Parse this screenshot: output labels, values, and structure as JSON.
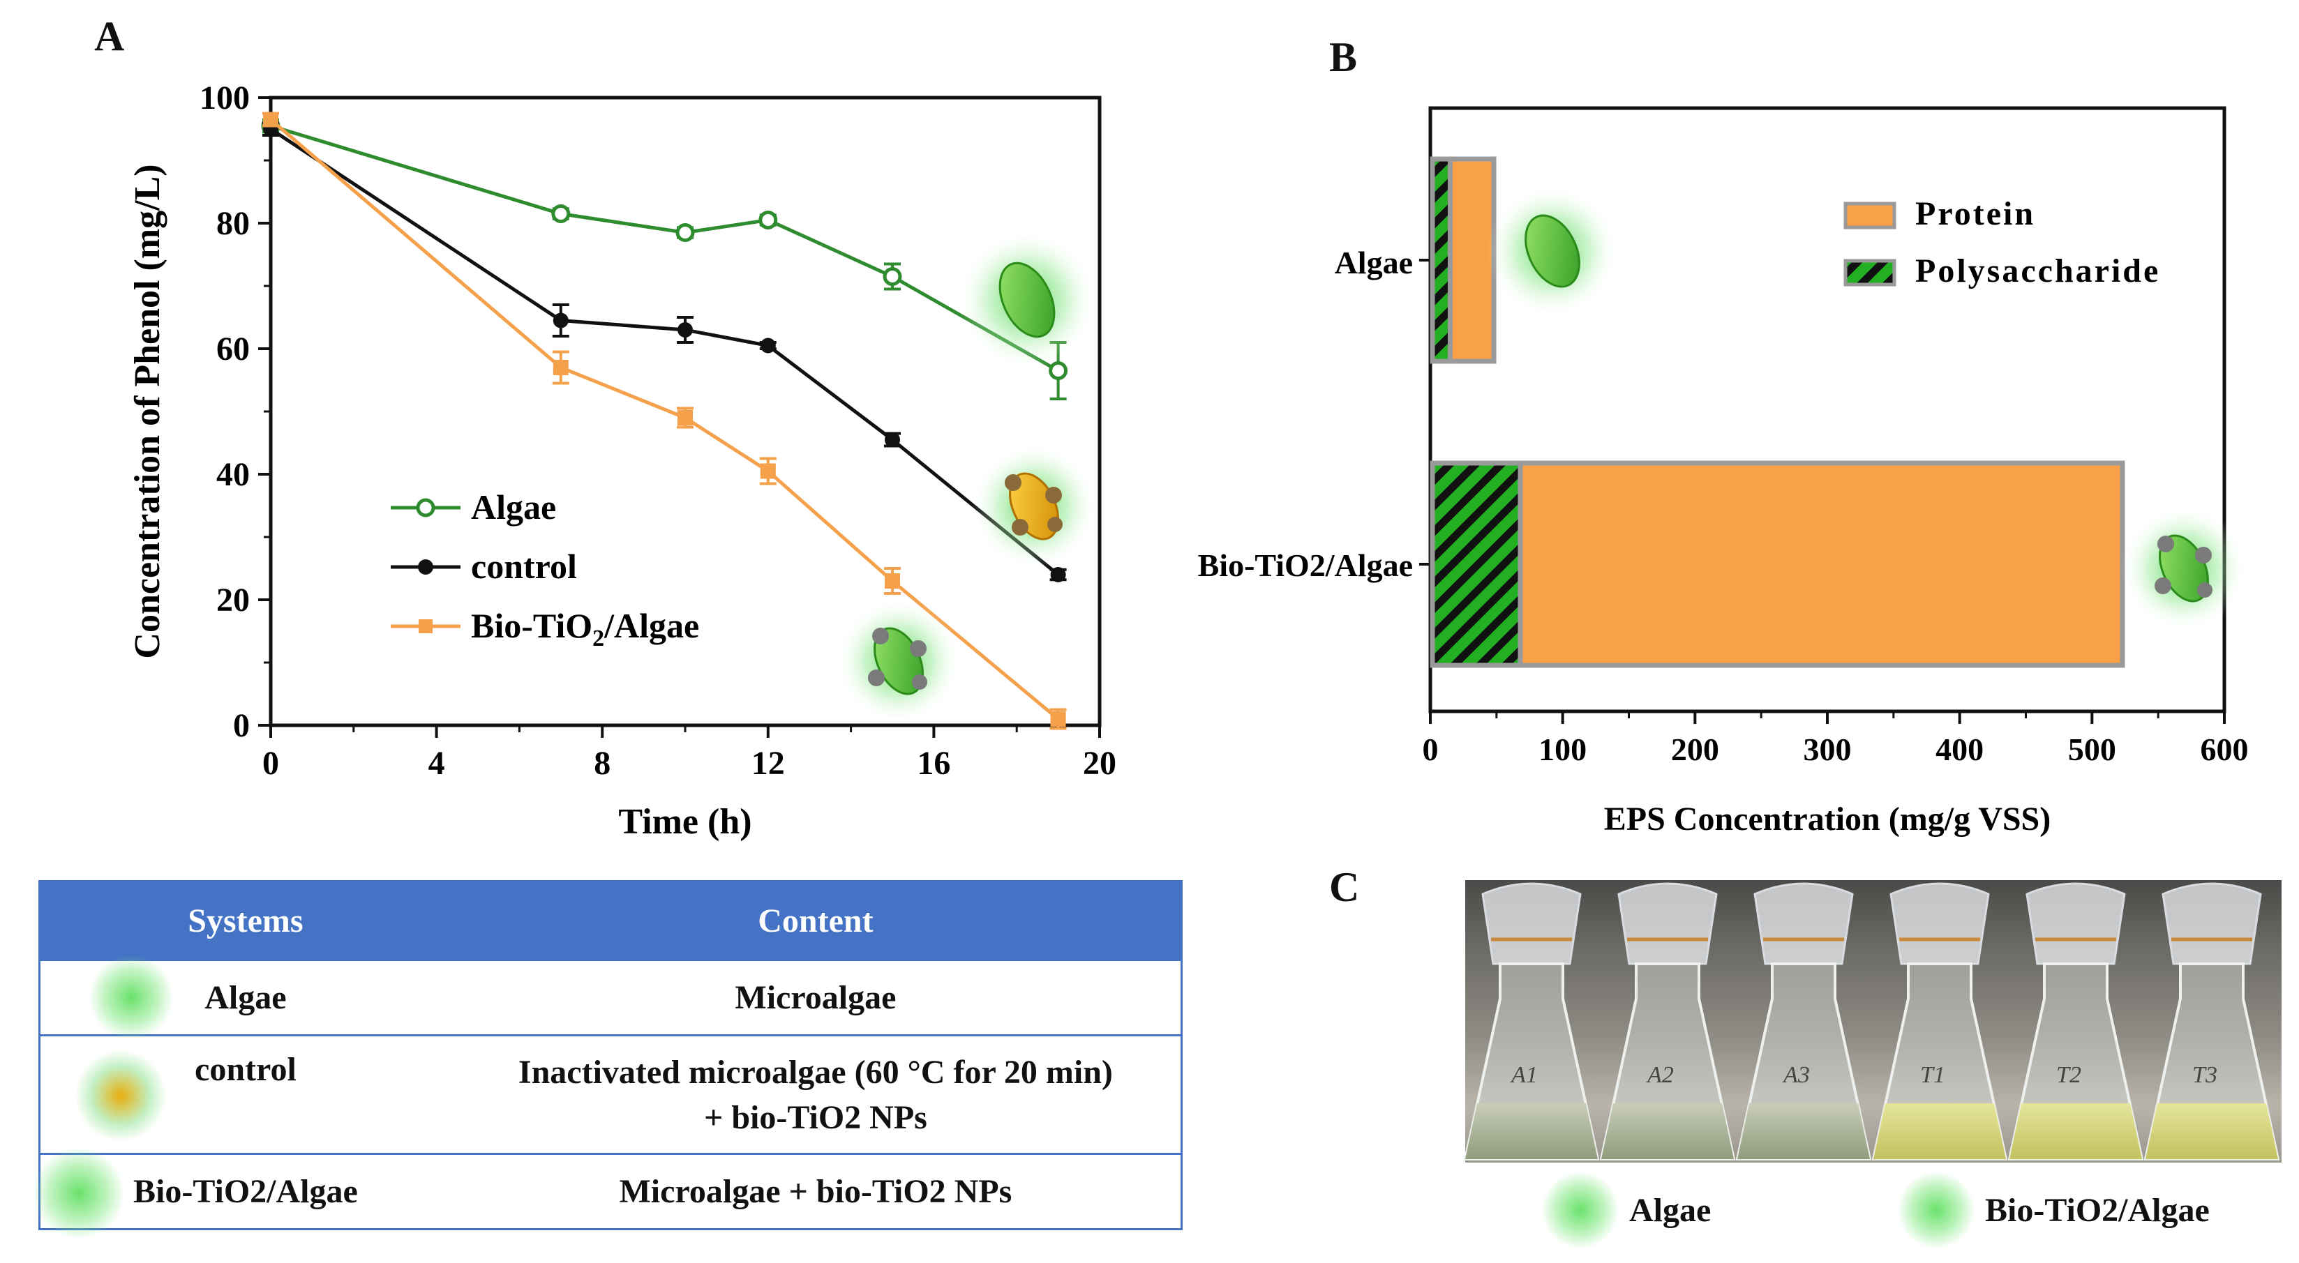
{
  "panels": {
    "a": "A",
    "b": "B",
    "c": "C"
  },
  "chart_data": [
    {
      "type": "line",
      "title": "",
      "xlabel": "Time (h)",
      "ylabel": "Concentration of Phenol (mg/L)",
      "xlim": [
        0,
        20
      ],
      "ylim": [
        0,
        100
      ],
      "xticks": [
        "0",
        "4",
        "8",
        "12",
        "16",
        "20"
      ],
      "yticks": [
        "0",
        "20",
        "40",
        "60",
        "80",
        "100"
      ],
      "legend_position": "lower-left",
      "series": [
        {
          "name": "Algae",
          "color": "#2e8b2e",
          "marker": "open-circle",
          "x": [
            0,
            7,
            10,
            12,
            15,
            19
          ],
          "y": [
            95.5,
            81.5,
            78.5,
            80.5,
            71.5,
            56.5
          ],
          "err": [
            1.0,
            0.8,
            0.8,
            0.8,
            2.0,
            4.5
          ]
        },
        {
          "name": "control",
          "color": "#111111",
          "marker": "filled-circle",
          "x": [
            0,
            7,
            10,
            12,
            15,
            19
          ],
          "y": [
            95.0,
            64.5,
            63.0,
            60.5,
            45.5,
            24.0
          ],
          "err": [
            1.0,
            2.5,
            2.0,
            0.5,
            1.0,
            0.8
          ]
        },
        {
          "name": "Bio-TiO2/Algae",
          "color": "#f5a04a",
          "marker": "square",
          "x": [
            0,
            7,
            10,
            12,
            15,
            19
          ],
          "y": [
            96.5,
            57.0,
            49.0,
            40.5,
            23.0,
            1.0
          ],
          "err": [
            1.0,
            2.5,
            1.5,
            2.0,
            2.0,
            1.5
          ]
        }
      ]
    },
    {
      "type": "bar",
      "orientation": "horizontal",
      "stacked": true,
      "xlabel": "EPS Concentration (mg/g VSS)",
      "ylabel": "",
      "xlim": [
        0,
        600
      ],
      "xticks": [
        "0",
        "100",
        "200",
        "300",
        "400",
        "500",
        "600"
      ],
      "categories": [
        "Algae",
        "Bio-TiO2/Algae"
      ],
      "legend_position": "top-right",
      "series": [
        {
          "name": "Polysaccharide",
          "color": "#22b022",
          "hatch": true,
          "values": [
            15,
            68
          ]
        },
        {
          "name": "Protein",
          "color": "#f9a146",
          "values": [
            33,
            455
          ]
        }
      ]
    }
  ],
  "legend_a": {
    "algae": "Algae",
    "control": "control",
    "bio": "Bio-TiO",
    "bio_sub": "2",
    "bio_tail": "/Algae"
  },
  "legend_b": {
    "protein": "Protein",
    "poly": "Polysaccharide"
  },
  "bar_labels": {
    "algae": "Algae",
    "bio": "Bio-TiO2/Algae"
  },
  "table": {
    "headers": [
      "Systems",
      "Content"
    ],
    "rows": [
      {
        "system": "Algae",
        "content": "Microalgae",
        "content2": ""
      },
      {
        "system": "control",
        "content": "Inactivated microalgae (60 °C for 20 min)",
        "content2": "+ bio-TiO2  NPs"
      },
      {
        "system": "Bio-TiO2/Algae",
        "content": "Microalgae + bio-TiO2  NPs",
        "content2": ""
      }
    ]
  },
  "photo": {
    "flask_labels": [
      "A1",
      "A2",
      "A3",
      "T1",
      "T2",
      "T3"
    ],
    "caption_left": "Algae",
    "caption_right": "Bio-TiO2/Algae"
  },
  "colors": {
    "header_blue": "#4472c4",
    "green": "#2e8b2e",
    "orange": "#f5a04a",
    "protein": "#f9a146",
    "poly": "#22b022"
  }
}
